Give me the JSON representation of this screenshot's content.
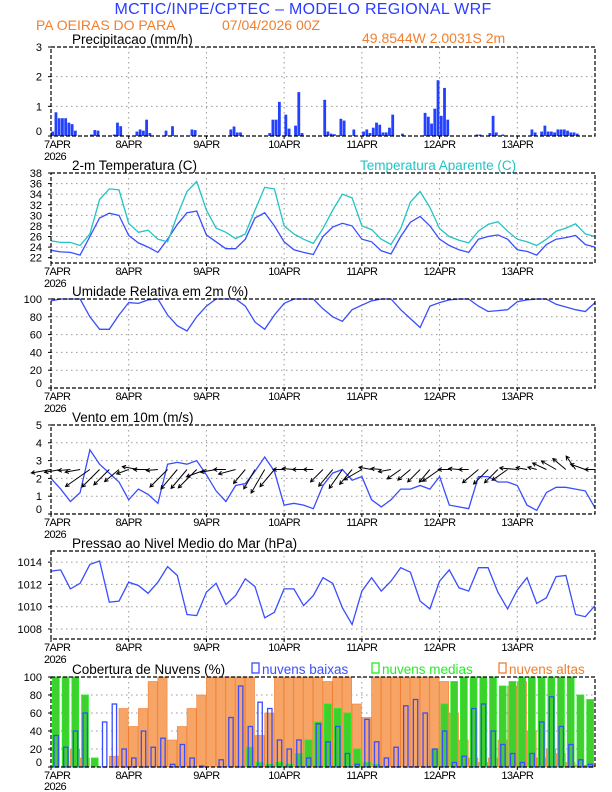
{
  "header": {
    "title": "MCTIC/INPE/CPTEC – MODELO REGIONAL WRF",
    "location": "PA OEIRAS DO PARA",
    "run": "07/04/2026 00Z",
    "coords": "49.8544W 2.0031S 2m"
  },
  "x_axis": {
    "labels": [
      "7APR",
      "8APR",
      "9APR",
      "10APR",
      "11APR",
      "12APR",
      "13APR"
    ],
    "year": "2026",
    "start": "07APR2026 00Z",
    "end_hours": 168
  },
  "colors": {
    "blue": "#3a4dff",
    "cyan": "#22c4c4",
    "orange_fill": "#f7a566",
    "orange_edge": "#f08030",
    "green_fill": "#3fcf2f",
    "green_edge": "#22ee22",
    "title_blue": "#2a3cff",
    "title_orange": "#f08030"
  },
  "chart_data": [
    {
      "id": "precip",
      "type": "bar",
      "title": "Precipitacao (mm/h)",
      "time_step": "1h",
      "ylim": [
        0,
        3
      ],
      "yticks": [
        0,
        1,
        2,
        3
      ],
      "grid": true,
      "series": [
        {
          "values": [
            0.15,
            0.8,
            0.6,
            0.6,
            0.6,
            0.45,
            0.4,
            0.18,
            0,
            0,
            0,
            0,
            0.05,
            0.2,
            0.18,
            0,
            0,
            0,
            0,
            0.05,
            0.45,
            0.33,
            0,
            0,
            0,
            0,
            0.15,
            0.22,
            0.18,
            0.55,
            0.1,
            0,
            0,
            0,
            0,
            0.18,
            0,
            0.33,
            0,
            0,
            0,
            0,
            0,
            0.22,
            0.2,
            0,
            0,
            0,
            0,
            0,
            0,
            0,
            0,
            0,
            0,
            0.22,
            0.32,
            0.12,
            0.12,
            0,
            0,
            0,
            0,
            0,
            0,
            0,
            0,
            0.1,
            0.55,
            0.55,
            1.15,
            0,
            0.72,
            0.25,
            0,
            0.35,
            1.48,
            0.1,
            0,
            0,
            0,
            0,
            0,
            0,
            1.22,
            0.15,
            0.08,
            0.06,
            0,
            0.58,
            0.52,
            0,
            0,
            0.22,
            0,
            0,
            0.15,
            0.22,
            0.1,
            0.28,
            0.45,
            0.38,
            0.12,
            0.12,
            0.28,
            0.72,
            0,
            0,
            0.08,
            0,
            0,
            0,
            0,
            0,
            0,
            0.78,
            0.65,
            0.42,
            0.92,
            1.88,
            0.68,
            1.62,
            0.55,
            0,
            0,
            0,
            0,
            0,
            0,
            0,
            0,
            0.05,
            0.05,
            0,
            0,
            0.1,
            0.68,
            0.12,
            0,
            0.05,
            0,
            0,
            0,
            0,
            0,
            0,
            0,
            0,
            0.22,
            0.12,
            0,
            0.15,
            0.35,
            0.15,
            0.15,
            0.12,
            0.22,
            0.22,
            0.22,
            0.18,
            0.12,
            0.12,
            0.08,
            0,
            0,
            0,
            0,
            0
          ]
        }
      ]
    },
    {
      "id": "temp",
      "type": "line",
      "title": "2-m Temperatura (C)",
      "time_step": "3h",
      "ylim": [
        21,
        38
      ],
      "yticks": [
        22,
        24,
        26,
        28,
        30,
        32,
        34,
        36,
        38
      ],
      "grid": true,
      "series": [
        {
          "name": "2-m Temperatura (C)",
          "values": [
            23.4,
            23.1,
            23.0,
            22.5,
            26.0,
            29.5,
            30.4,
            30.0,
            26.2,
            24.8,
            24.0,
            23.0,
            25.5,
            28.3,
            30.5,
            30.8,
            26.3,
            25.0,
            23.7,
            23.7,
            25.5,
            29.5,
            30.5,
            28.0,
            25.0,
            23.5,
            23.0,
            22.6,
            26.0,
            27.8,
            28.5,
            28.0,
            25.5,
            25.0,
            23.3,
            22.7,
            26.0,
            28.7,
            29.8,
            28.0,
            25.5,
            24.3,
            23.5,
            23.0,
            25.5,
            26.0,
            26.3,
            25.5,
            23.5,
            23.2,
            22.5,
            24.5,
            25.5,
            25.8,
            26.2,
            24.5,
            24.0
          ]
        },
        {
          "name": "Temperatura Aparente (C)",
          "values": [
            25.2,
            24.9,
            24.9,
            24.3,
            26.5,
            33.0,
            35.0,
            34.8,
            28.5,
            26.8,
            27.2,
            25.5,
            25.0,
            30.0,
            34.5,
            36.4,
            31.0,
            27.6,
            26.8,
            25.6,
            26.5,
            31.0,
            35.3,
            35.0,
            28.0,
            26.5,
            25.5,
            24.7,
            27.5,
            31.0,
            34.0,
            33.3,
            28.0,
            27.3,
            25.5,
            24.5,
            27.5,
            32.5,
            34.5,
            31.5,
            27.5,
            26.0,
            25.3,
            24.8,
            27.0,
            28.3,
            28.8,
            27.0,
            25.5,
            25.0,
            24.3,
            25.5,
            27.0,
            27.6,
            28.4,
            26.5,
            26.0
          ]
        }
      ]
    },
    {
      "id": "rh",
      "type": "line",
      "title": "Umidade Relativa em 2m (%)",
      "time_step": "3h",
      "ylim": [
        0,
        100
      ],
      "yticks": [
        0,
        20,
        40,
        60,
        80,
        100
      ],
      "grid": true,
      "series": [
        {
          "values": [
            98,
            100,
            100,
            100,
            80,
            66,
            66,
            82,
            96,
            95,
            99,
            100,
            82,
            70,
            64,
            80,
            92,
            100,
            100,
            100,
            92,
            74,
            66,
            82,
            95,
            100,
            100,
            100,
            89,
            80,
            75,
            88,
            93,
            98,
            100,
            100,
            88,
            78,
            68,
            92,
            96,
            99,
            100,
            100,
            92,
            86,
            87,
            88,
            97,
            99,
            100,
            100,
            94,
            91,
            88,
            86,
            96
          ]
        }
      ]
    },
    {
      "id": "wind",
      "type": "line",
      "title": "Vento em 10m (m/s)",
      "time_step": "3h",
      "ylim": [
        0,
        5
      ],
      "yticks": [
        0,
        1,
        2,
        3,
        4,
        5
      ],
      "grid": true,
      "series": [
        {
          "values": [
            2.0,
            1.4,
            0.7,
            1.2,
            3.6,
            2.8,
            2.3,
            1.8,
            0.8,
            1.4,
            1.1,
            0.6,
            2.8,
            2.9,
            2.8,
            3.0,
            2.2,
            1.3,
            0.7,
            1.6,
            1.7,
            2.4,
            3.2,
            2.4,
            0.5,
            0.6,
            0.5,
            0.3,
            1.6,
            2.3,
            2.5,
            1.9,
            2.1,
            0.8,
            0.4,
            0.8,
            1.4,
            1.4,
            1.6,
            1.4,
            2.1,
            0.5,
            0.4,
            0.3,
            2.1,
            2.1,
            1.8,
            1.8,
            1.6,
            0.5,
            0.2,
            1.2,
            1.5,
            1.5,
            1.4,
            1.3,
            0.35
          ]
        }
      ],
      "wind_direction_deg": [
        80,
        80,
        85,
        80,
        55,
        45,
        45,
        50,
        70,
        100,
        90,
        85,
        45,
        40,
        40,
        45,
        70,
        80,
        90,
        75,
        40,
        30,
        30,
        40,
        90,
        95,
        90,
        90,
        45,
        40,
        35,
        40,
        60,
        100,
        95,
        80,
        55,
        50,
        45,
        40,
        55,
        90,
        95,
        90,
        50,
        45,
        45,
        55,
        95,
        100,
        105,
        115,
        120,
        130,
        145,
        110,
        90
      ],
      "vector_baseline": 2.5
    },
    {
      "id": "pressure",
      "type": "line",
      "title": "Pressao ao Nivel Medio do Mar (hPa)",
      "time_step": "3h",
      "ylim": [
        1007.1,
        1015
      ],
      "yticks": [
        1008,
        1010,
        1012,
        1014
      ],
      "grid": true,
      "series": [
        {
          "values": [
            1013.2,
            1013.3,
            1011.6,
            1012.1,
            1013.8,
            1014.1,
            1010.4,
            1010.5,
            1012.2,
            1011.9,
            1011.2,
            1012.2,
            1013.6,
            1012.8,
            1009.3,
            1009.2,
            1011.3,
            1012.1,
            1010.2,
            1011.0,
            1012.5,
            1011.8,
            1009.0,
            1009.5,
            1011.6,
            1011.6,
            1010.1,
            1011.0,
            1012.6,
            1012.1,
            1009.9,
            1008.4,
            1011.4,
            1012.6,
            1011.4,
            1012.3,
            1013.5,
            1013.1,
            1010.5,
            1009.8,
            1012.3,
            1013.3,
            1011.7,
            1011.4,
            1013.5,
            1013.5,
            1011.3,
            1009.8,
            1011.5,
            1012.6,
            1010.3,
            1010.8,
            1012.7,
            1012.8,
            1009.3,
            1009.1,
            1010.1
          ]
        }
      ]
    },
    {
      "id": "clouds",
      "type": "bar",
      "title": "Cobertura de Nuvens (%)",
      "time_step": "3h",
      "ylim": [
        0,
        100
      ],
      "yticks": [
        0,
        20,
        40,
        60,
        80,
        100
      ],
      "grid": true,
      "legend": "top",
      "series": [
        {
          "name": "nuvens altas",
          "values": [
            0,
            0,
            20,
            10,
            0,
            0,
            12,
            65,
            45,
            65,
            95,
            100,
            30,
            45,
            65,
            80,
            100,
            100,
            100,
            100,
            100,
            35,
            60,
            100,
            100,
            100,
            100,
            100,
            95,
            100,
            100,
            70,
            55,
            100,
            100,
            100,
            100,
            100,
            100,
            100,
            95,
            60,
            30,
            10,
            5,
            10,
            30,
            90,
            95,
            40,
            10,
            20,
            15,
            5,
            2,
            2,
            0
          ]
        },
        {
          "name": "nuvens medias",
          "values": [
            100,
            100,
            100,
            80,
            10,
            0,
            0,
            0,
            0,
            0,
            0,
            0,
            0,
            0,
            0,
            0,
            0,
            0,
            0,
            0,
            22,
            5,
            3,
            5,
            3,
            15,
            30,
            50,
            70,
            65,
            60,
            20,
            5,
            3,
            0,
            0,
            0,
            0,
            0,
            20,
            70,
            95,
            100,
            100,
            100,
            100,
            90,
            95,
            100,
            100,
            100,
            100,
            100,
            100,
            80,
            75,
            70
          ]
        },
        {
          "name": "nuvens baixas",
          "values": [
            35,
            22,
            40,
            60,
            0,
            50,
            70,
            20,
            10,
            40,
            22,
            32,
            3,
            25,
            10,
            1,
            0,
            8,
            55,
            90,
            45,
            72,
            65,
            30,
            20,
            30,
            10,
            48,
            28,
            45,
            15,
            3,
            53,
            28,
            10,
            22,
            68,
            75,
            60,
            20,
            40,
            5,
            12,
            65,
            70,
            40,
            25,
            15,
            5,
            15,
            50,
            78,
            45,
            25,
            8,
            3,
            3
          ]
        }
      ]
    }
  ]
}
